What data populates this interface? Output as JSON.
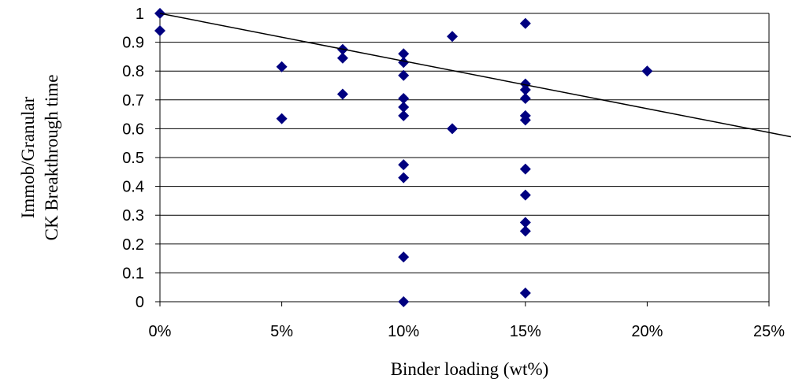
{
  "chart_data": {
    "type": "scatter",
    "xlabel": "Binder loading (wt%)",
    "ylabel_lines": [
      "Immob/Granular",
      "CK Breakthrough time"
    ],
    "xlim": [
      0,
      25
    ],
    "ylim": [
      0,
      1
    ],
    "x_ticks": [
      0,
      5,
      10,
      15,
      20,
      25
    ],
    "x_tick_labels": [
      "0%",
      "5%",
      "10%",
      "15%",
      "20%",
      "25%"
    ],
    "y_ticks": [
      0,
      0.1,
      0.2,
      0.3,
      0.4,
      0.5,
      0.6,
      0.7,
      0.8,
      0.9,
      1
    ],
    "y_tick_labels": [
      "0",
      "0.1",
      "0.2",
      "0.3",
      "0.4",
      "0.5",
      "0.6",
      "0.7",
      "0.8",
      "0.9",
      "1"
    ],
    "grid": "horizontal",
    "legend": "none",
    "marker_color": "#000080",
    "series": [
      {
        "x": [
          0,
          0,
          5,
          5,
          7.5,
          7.5,
          7.5,
          10,
          10,
          10,
          10,
          10,
          10,
          10,
          10,
          10,
          10,
          12,
          12,
          15,
          15,
          15,
          15,
          15,
          15,
          15,
          15,
          15,
          15,
          15,
          20
        ],
        "y": [
          1.0,
          0.94,
          0.815,
          0.635,
          0.875,
          0.845,
          0.72,
          0.86,
          0.83,
          0.785,
          0.705,
          0.675,
          0.645,
          0.475,
          0.43,
          0.155,
          0.0,
          0.92,
          0.6,
          0.965,
          0.755,
          0.735,
          0.705,
          0.645,
          0.63,
          0.46,
          0.37,
          0.275,
          0.245,
          0.03,
          0.8
        ]
      }
    ],
    "trendline": {
      "type": "linear",
      "x": [
        0,
        25
      ],
      "y": [
        1.0,
        0.587
      ]
    }
  }
}
